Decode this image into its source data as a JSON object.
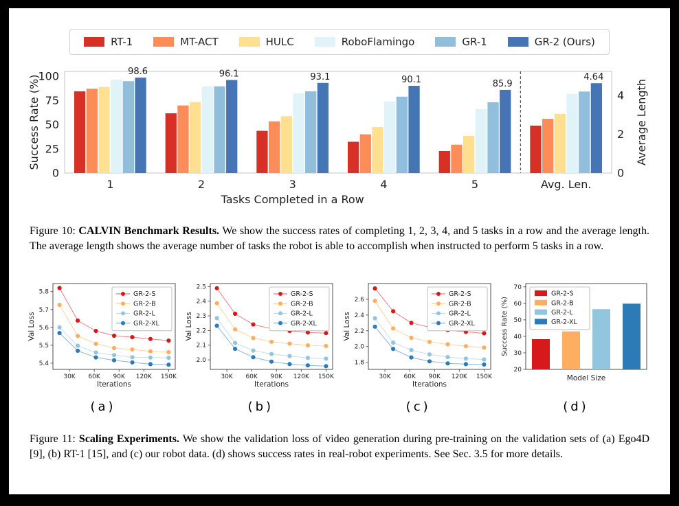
{
  "figures": {
    "fig10": {
      "caption_prefix": "Figure 10:",
      "caption_bold": " CALVIN Benchmark Results.",
      "caption_rest": " We show the success rates of completing 1, 2, 3, 4, and 5 tasks in a row and the average length. The average length shows the average number of tasks the robot is able to accomplish when instructed to perform 5 tasks in a row."
    },
    "fig11": {
      "caption_prefix": "Figure 11:",
      "caption_bold": " Scaling Experiments.",
      "caption_rest": " We show the validation loss of video generation during pre-training on the validation sets of (a) Ego4D [9], (b) RT-1 [15], and (c) our robot data. (d) shows success rates in real-robot experiments. See Sec. 3.5 for more details.",
      "sublabels": [
        "(a)",
        "(b)",
        "(c)",
        "(d)"
      ]
    }
  },
  "chart_data": [
    {
      "id": "fig10",
      "type": "bar",
      "title": "CALVIN Benchmark Results",
      "categories": [
        "1",
        "2",
        "3",
        "4",
        "5",
        "Avg. Len."
      ],
      "xlabel": "Tasks Completed in a Row",
      "ylabel_left": "Success Rate (%)",
      "ylabel_right": "Average Length",
      "yticks_left": [
        0,
        25,
        50,
        75,
        100
      ],
      "yticks_right": [
        0,
        2,
        4
      ],
      "ylim_left": [
        0,
        105
      ],
      "ylim_right": [
        0,
        5.25
      ],
      "avg_index": 5,
      "legend_position": "top-center",
      "grid": false,
      "series": [
        {
          "name": "RT-1",
          "color": "#d73027",
          "values": [
            84.4,
            61.7,
            43.6,
            32.3,
            22.7,
            2.45
          ]
        },
        {
          "name": "MT-ACT",
          "color": "#fc8d59",
          "values": [
            87.1,
            69.8,
            53.4,
            40.0,
            29.3,
            2.8
          ]
        },
        {
          "name": "HULC",
          "color": "#fee090",
          "values": [
            88.9,
            73.3,
            58.7,
            47.5,
            38.3,
            3.06
          ]
        },
        {
          "name": "RoboFlamingo",
          "color": "#e0f3f8",
          "values": [
            96.4,
            89.6,
            82.4,
            74.0,
            66.0,
            4.09
          ]
        },
        {
          "name": "GR-1",
          "color": "#91bfdb",
          "values": [
            94.9,
            89.6,
            84.4,
            78.9,
            73.1,
            4.21
          ]
        },
        {
          "name": "GR-2 (Ours)",
          "color": "#4575b4",
          "values": [
            98.6,
            96.1,
            93.1,
            90.1,
            85.9,
            4.64
          ]
        }
      ],
      "bar_labels": [
        "98.6",
        "96.1",
        "93.1",
        "90.1",
        "85.9",
        "4.64"
      ],
      "bar_labels_on_series": 5,
      "separator_before_category": 5
    },
    {
      "id": "a",
      "type": "line",
      "xlabel": "Iterations",
      "ylabel": "Val Loss",
      "x": [
        18,
        40,
        62,
        84,
        106,
        128,
        150
      ],
      "xlim": [
        10,
        158
      ],
      "xtick_vals": [
        30,
        60,
        90,
        120,
        150
      ],
      "xtick_labels": [
        "30K",
        "60K",
        "90K",
        "120K",
        "150K"
      ],
      "ylim": [
        5.365,
        5.845
      ],
      "ytick_vals": [
        5.4,
        5.5,
        5.6,
        5.7,
        5.8
      ],
      "ytick_labels": [
        "5.4",
        "5.5",
        "5.6",
        "5.7",
        "5.8"
      ],
      "legend_position": "top-right",
      "grid": false,
      "series": [
        {
          "name": "GR-2-S",
          "color": "#d7191c",
          "values": [
            5.82,
            5.638,
            5.58,
            5.553,
            5.545,
            5.535,
            5.526
          ]
        },
        {
          "name": "GR-2-B",
          "color": "#fdae61",
          "values": [
            5.726,
            5.552,
            5.508,
            5.484,
            5.476,
            5.466,
            5.461
          ]
        },
        {
          "name": "GR-2-L",
          "color": "#92c5de",
          "values": [
            5.6,
            5.497,
            5.459,
            5.445,
            5.433,
            5.431,
            5.43
          ]
        },
        {
          "name": "GR-2-XL",
          "color": "#2c7bb6",
          "values": [
            5.568,
            5.469,
            5.432,
            5.416,
            5.404,
            5.394,
            5.391
          ]
        }
      ]
    },
    {
      "id": "b",
      "type": "line",
      "xlabel": "Iterations",
      "ylabel": "Val Loss",
      "x": [
        18,
        40,
        62,
        84,
        106,
        128,
        150
      ],
      "xlim": [
        10,
        158
      ],
      "xtick_vals": [
        30,
        60,
        90,
        120,
        150
      ],
      "xtick_labels": [
        "30K",
        "60K",
        "90K",
        "120K",
        "150K"
      ],
      "ylim": [
        1.935,
        2.52
      ],
      "ytick_vals": [
        2.0,
        2.1,
        2.2,
        2.3,
        2.4,
        2.5
      ],
      "ytick_labels": [
        "2.0",
        "2.1",
        "2.2",
        "2.3",
        "2.4",
        "2.5"
      ],
      "legend_position": "top-right",
      "grid": false,
      "series": [
        {
          "name": "GR-2-S",
          "color": "#d7191c",
          "values": [
            2.488,
            2.314,
            2.241,
            2.212,
            2.197,
            2.187,
            2.182
          ]
        },
        {
          "name": "GR-2-B",
          "color": "#fdae61",
          "values": [
            2.386,
            2.208,
            2.149,
            2.123,
            2.11,
            2.099,
            2.094
          ]
        },
        {
          "name": "GR-2-L",
          "color": "#92c5de",
          "values": [
            2.284,
            2.115,
            2.063,
            2.04,
            2.026,
            2.013,
            2.008
          ]
        },
        {
          "name": "GR-2-XL",
          "color": "#2c7bb6",
          "values": [
            2.232,
            2.075,
            2.018,
            1.988,
            1.971,
            1.962,
            1.957
          ]
        }
      ]
    },
    {
      "id": "c",
      "type": "line",
      "xlabel": "Iterations",
      "ylabel": "Val Loss",
      "x": [
        18,
        40,
        62,
        84,
        106,
        128,
        150
      ],
      "xlim": [
        10,
        158
      ],
      "xtick_vals": [
        30,
        60,
        90,
        120,
        150
      ],
      "xtick_labels": [
        "30K",
        "60K",
        "90K",
        "120K",
        "150K"
      ],
      "ylim": [
        1.71,
        2.8
      ],
      "ytick_vals": [
        1.8,
        2.0,
        2.2,
        2.4,
        2.6
      ],
      "ytick_labels": [
        "1.8",
        "2.0",
        "2.2",
        "2.4",
        "2.6"
      ],
      "legend_position": "top-right",
      "grid": false,
      "series": [
        {
          "name": "GR-2-S",
          "color": "#d7191c",
          "values": [
            2.738,
            2.448,
            2.3,
            2.245,
            2.21,
            2.186,
            2.168
          ]
        },
        {
          "name": "GR-2-B",
          "color": "#fdae61",
          "values": [
            2.58,
            2.23,
            2.112,
            2.06,
            2.028,
            2.005,
            1.986
          ]
        },
        {
          "name": "GR-2-L",
          "color": "#92c5de",
          "values": [
            2.36,
            2.05,
            1.955,
            1.9,
            1.866,
            1.846,
            1.836
          ]
        },
        {
          "name": "GR-2-XL",
          "color": "#2c7bb6",
          "values": [
            2.252,
            1.97,
            1.862,
            1.812,
            1.786,
            1.776,
            1.772
          ]
        }
      ]
    },
    {
      "id": "d",
      "type": "bar-simple",
      "xlabel": "Model Size",
      "ylabel": "Success Rate (%)",
      "ylim": [
        20,
        72
      ],
      "ytick_vals": [
        20,
        30,
        40,
        50,
        60,
        70
      ],
      "ytick_labels": [
        "20",
        "30",
        "40",
        "50",
        "60",
        "70"
      ],
      "legend_position": "top-left",
      "grid": false,
      "series": [
        {
          "name": "GR-2-S",
          "color": "#d7191c",
          "value": 38.3
        },
        {
          "name": "GR-2-B",
          "color": "#fdae61",
          "value": 43.0
        },
        {
          "name": "GR-2-L",
          "color": "#92c5de",
          "value": 56.5
        },
        {
          "name": "GR-2-XL",
          "color": "#2c7bb6",
          "value": 59.8
        }
      ]
    }
  ]
}
